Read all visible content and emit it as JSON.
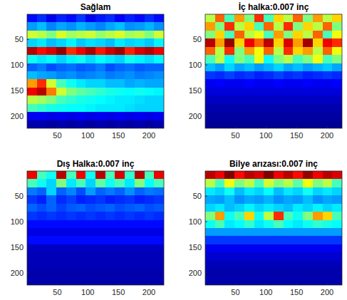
{
  "chart_data": [
    {
      "type": "heatmap",
      "title": "Sağlam",
      "xlim": [
        0.5,
        224.5
      ],
      "ylim": [
        0.5,
        224.5
      ],
      "xticks": [
        50,
        100,
        150,
        200
      ],
      "yticks": [
        50,
        100,
        150,
        200
      ],
      "zlim": [
        0.1,
        1
      ],
      "cells": [
        [
          0.22,
          0.25,
          0.2,
          0.24,
          0.22,
          0.26,
          0.2,
          0.23,
          0.25,
          0.21,
          0.24,
          0.22,
          0.25,
          0.22
        ],
        [
          0.35,
          0.38,
          0.33,
          0.36,
          0.34,
          0.37,
          0.35,
          0.33,
          0.36,
          0.38,
          0.34,
          0.35,
          0.37,
          0.34
        ],
        [
          0.62,
          0.6,
          0.55,
          0.63,
          0.58,
          0.6,
          0.62,
          0.57,
          0.6,
          0.63,
          0.58,
          0.6,
          0.55,
          0.62
        ],
        [
          0.4,
          0.42,
          0.38,
          0.4,
          0.43,
          0.39,
          0.41,
          0.4,
          0.38,
          0.42,
          0.4,
          0.41,
          0.39,
          0.43
        ],
        [
          0.95,
          0.88,
          0.92,
          0.98,
          0.85,
          0.9,
          0.96,
          0.87,
          0.93,
          0.97,
          0.86,
          0.92,
          0.95,
          0.9
        ],
        [
          0.45,
          0.42,
          0.44,
          0.4,
          0.43,
          0.45,
          0.41,
          0.44,
          0.42,
          0.4,
          0.45,
          0.43,
          0.41,
          0.44
        ],
        [
          0.3,
          0.32,
          0.28,
          0.3,
          0.31,
          0.29,
          0.3,
          0.32,
          0.28,
          0.3,
          0.31,
          0.29,
          0.3,
          0.3
        ],
        [
          0.38,
          0.36,
          0.35,
          0.33,
          0.34,
          0.32,
          0.33,
          0.34,
          0.32,
          0.33,
          0.34,
          0.32,
          0.33,
          0.34
        ],
        [
          0.75,
          0.85,
          0.62,
          0.5,
          0.45,
          0.42,
          0.4,
          0.4,
          0.38,
          0.38,
          0.36,
          0.37,
          0.36,
          0.36
        ],
        [
          0.9,
          0.95,
          0.78,
          0.62,
          0.55,
          0.52,
          0.5,
          0.48,
          0.46,
          0.45,
          0.44,
          0.45,
          0.44,
          0.43
        ],
        [
          0.6,
          0.58,
          0.55,
          0.5,
          0.48,
          0.46,
          0.45,
          0.44,
          0.43,
          0.42,
          0.42,
          0.41,
          0.4,
          0.4
        ],
        [
          0.5,
          0.48,
          0.46,
          0.45,
          0.44,
          0.44,
          0.43,
          0.42,
          0.42,
          0.42,
          0.41,
          0.4,
          0.4,
          0.4
        ],
        [
          0.2,
          0.2,
          0.19,
          0.2,
          0.19,
          0.2,
          0.19,
          0.2,
          0.19,
          0.2,
          0.19,
          0.2,
          0.19,
          0.2
        ],
        [
          0.14,
          0.14,
          0.13,
          0.14,
          0.13,
          0.14,
          0.13,
          0.14,
          0.13,
          0.14,
          0.13,
          0.14,
          0.13,
          0.14
        ]
      ]
    },
    {
      "type": "heatmap",
      "title": "İç halka:0.007 inç",
      "xlim": [
        0.5,
        224.5
      ],
      "ylim": [
        0.5,
        224.5
      ],
      "xticks": [
        50,
        100,
        150,
        200
      ],
      "yticks": [
        50,
        100,
        150,
        200
      ],
      "zlim": [
        0.1,
        1
      ],
      "cells": [
        [
          0.6,
          0.8,
          0.5,
          0.75,
          0.55,
          0.85,
          0.5,
          0.7,
          0.6,
          0.8,
          0.55,
          0.75,
          0.6,
          0.7
        ],
        [
          0.75,
          0.55,
          0.85,
          0.6,
          0.7,
          0.5,
          0.8,
          0.6,
          0.85,
          0.55,
          0.7,
          0.6,
          0.8,
          0.55
        ],
        [
          0.55,
          0.7,
          0.5,
          0.8,
          0.6,
          0.65,
          0.5,
          0.75,
          0.55,
          0.7,
          0.6,
          0.8,
          0.5,
          0.65
        ],
        [
          0.95,
          0.75,
          0.98,
          0.7,
          0.9,
          0.8,
          0.95,
          0.7,
          0.92,
          0.75,
          0.97,
          0.7,
          0.9,
          0.85
        ],
        [
          0.8,
          0.6,
          0.85,
          0.55,
          0.75,
          0.65,
          0.8,
          0.6,
          0.85,
          0.7,
          0.75,
          0.6,
          0.8,
          0.65
        ],
        [
          0.5,
          0.6,
          0.45,
          0.55,
          0.5,
          0.65,
          0.45,
          0.55,
          0.6,
          0.5,
          0.55,
          0.65,
          0.5,
          0.55
        ],
        [
          0.38,
          0.35,
          0.4,
          0.36,
          0.38,
          0.35,
          0.37,
          0.4,
          0.36,
          0.38,
          0.35,
          0.37,
          0.39,
          0.36
        ],
        [
          0.26,
          0.25,
          0.27,
          0.25,
          0.26,
          0.24,
          0.25,
          0.27,
          0.25,
          0.26,
          0.24,
          0.25,
          0.26,
          0.25
        ],
        [
          0.2,
          0.21,
          0.2,
          0.2,
          0.21,
          0.2,
          0.2,
          0.21,
          0.2,
          0.2,
          0.21,
          0.2,
          0.2,
          0.21
        ],
        [
          0.18,
          0.18,
          0.18,
          0.18,
          0.18,
          0.18,
          0.18,
          0.18,
          0.18,
          0.18,
          0.18,
          0.18,
          0.18,
          0.18
        ],
        [
          0.16,
          0.16,
          0.16,
          0.16,
          0.16,
          0.16,
          0.16,
          0.16,
          0.16,
          0.16,
          0.16,
          0.16,
          0.16,
          0.16
        ],
        [
          0.14,
          0.14,
          0.14,
          0.14,
          0.14,
          0.14,
          0.14,
          0.14,
          0.14,
          0.14,
          0.14,
          0.14,
          0.14,
          0.14
        ],
        [
          0.13,
          0.13,
          0.13,
          0.13,
          0.13,
          0.13,
          0.13,
          0.13,
          0.13,
          0.13,
          0.13,
          0.13,
          0.13,
          0.13
        ],
        [
          0.12,
          0.12,
          0.12,
          0.12,
          0.12,
          0.12,
          0.12,
          0.12,
          0.12,
          0.12,
          0.12,
          0.12,
          0.12,
          0.12
        ]
      ]
    },
    {
      "type": "heatmap",
      "title": "Dış Halka:0.007 inç",
      "xlim": [
        0.5,
        224.5
      ],
      "ylim": [
        0.5,
        224.5
      ],
      "xticks": [
        50,
        100,
        150,
        200
      ],
      "yticks": [
        50,
        100,
        150,
        200
      ],
      "zlim": [
        0.1,
        1
      ],
      "cells": [
        [
          0.9,
          0.5,
          0.45,
          0.95,
          0.5,
          0.9,
          0.45,
          0.95,
          0.5,
          0.92,
          0.48,
          0.95,
          0.5,
          0.9
        ],
        [
          0.5,
          0.45,
          0.4,
          0.55,
          0.42,
          0.5,
          0.4,
          0.52,
          0.45,
          0.5,
          0.42,
          0.55,
          0.44,
          0.5
        ],
        [
          0.32,
          0.3,
          0.4,
          0.3,
          0.33,
          0.28,
          0.35,
          0.3,
          0.32,
          0.3,
          0.34,
          0.3,
          0.32,
          0.31
        ],
        [
          0.26,
          0.24,
          0.3,
          0.25,
          0.27,
          0.24,
          0.25,
          0.26,
          0.24,
          0.25,
          0.26,
          0.24,
          0.25,
          0.26
        ],
        [
          0.3,
          0.28,
          0.3,
          0.27,
          0.29,
          0.3,
          0.28,
          0.29,
          0.3,
          0.28,
          0.29,
          0.3,
          0.28,
          0.29
        ],
        [
          0.26,
          0.25,
          0.26,
          0.25,
          0.26,
          0.25,
          0.26,
          0.25,
          0.26,
          0.25,
          0.26,
          0.25,
          0.26,
          0.25
        ],
        [
          0.22,
          0.22,
          0.22,
          0.22,
          0.22,
          0.22,
          0.22,
          0.22,
          0.22,
          0.22,
          0.22,
          0.22,
          0.22,
          0.22
        ],
        [
          0.19,
          0.19,
          0.19,
          0.19,
          0.19,
          0.19,
          0.19,
          0.19,
          0.19,
          0.19,
          0.19,
          0.19,
          0.19,
          0.19
        ],
        [
          0.22,
          0.22,
          0.22,
          0.22,
          0.22,
          0.22,
          0.22,
          0.22,
          0.22,
          0.22,
          0.22,
          0.22,
          0.22,
          0.22
        ],
        [
          0.16,
          0.16,
          0.16,
          0.16,
          0.16,
          0.16,
          0.16,
          0.16,
          0.16,
          0.16,
          0.16,
          0.16,
          0.16,
          0.16
        ],
        [
          0.15,
          0.15,
          0.15,
          0.15,
          0.15,
          0.15,
          0.15,
          0.15,
          0.15,
          0.15,
          0.15,
          0.15,
          0.15,
          0.15
        ],
        [
          0.15,
          0.15,
          0.15,
          0.15,
          0.15,
          0.15,
          0.15,
          0.15,
          0.15,
          0.15,
          0.15,
          0.15,
          0.15,
          0.15
        ],
        [
          0.14,
          0.14,
          0.14,
          0.14,
          0.14,
          0.14,
          0.14,
          0.14,
          0.14,
          0.14,
          0.14,
          0.14,
          0.14,
          0.14
        ],
        [
          0.14,
          0.14,
          0.14,
          0.14,
          0.14,
          0.14,
          0.14,
          0.14,
          0.14,
          0.14,
          0.14,
          0.14,
          0.14,
          0.14
        ]
      ]
    },
    {
      "type": "heatmap",
      "title": "Bilye arızası:0.007 inç",
      "xlim": [
        0.5,
        224.5
      ],
      "ylim": [
        0.5,
        224.5
      ],
      "xticks": [
        50,
        100,
        150,
        200
      ],
      "yticks": [
        50,
        100,
        150,
        200
      ],
      "zlim": [
        0.1,
        1
      ],
      "cells": [
        [
          0.95,
          0.9,
          1.0,
          0.88,
          0.95,
          0.92,
          1.0,
          0.9,
          0.95,
          0.88,
          0.98,
          0.9,
          0.95,
          0.92
        ],
        [
          0.6,
          0.5,
          0.65,
          0.55,
          0.6,
          0.5,
          0.62,
          0.55,
          0.6,
          0.52,
          0.65,
          0.55,
          0.6,
          0.5
        ],
        [
          0.42,
          0.4,
          0.45,
          0.38,
          0.42,
          0.4,
          0.44,
          0.38,
          0.42,
          0.4,
          0.45,
          0.4,
          0.42,
          0.4
        ],
        [
          0.36,
          0.35,
          0.38,
          0.34,
          0.36,
          0.35,
          0.37,
          0.34,
          0.36,
          0.35,
          0.38,
          0.34,
          0.36,
          0.35
        ],
        [
          0.4,
          0.42,
          0.38,
          0.4,
          0.43,
          0.4,
          0.42,
          0.4,
          0.38,
          0.42,
          0.4,
          0.43,
          0.4,
          0.42
        ],
        [
          0.55,
          0.75,
          0.45,
          0.5,
          0.7,
          0.45,
          0.6,
          0.85,
          0.5,
          0.45,
          0.55,
          0.75,
          0.7,
          0.5
        ],
        [
          0.45,
          0.5,
          0.42,
          0.44,
          0.48,
          0.42,
          0.45,
          0.5,
          0.44,
          0.42,
          0.45,
          0.48,
          0.46,
          0.44
        ],
        [
          0.35,
          0.35,
          0.35,
          0.35,
          0.35,
          0.35,
          0.35,
          0.35,
          0.35,
          0.35,
          0.35,
          0.35,
          0.35,
          0.35
        ],
        [
          0.26,
          0.26,
          0.26,
          0.26,
          0.26,
          0.26,
          0.26,
          0.26,
          0.26,
          0.26,
          0.26,
          0.26,
          0.26,
          0.26
        ],
        [
          0.2,
          0.2,
          0.2,
          0.2,
          0.2,
          0.2,
          0.2,
          0.2,
          0.2,
          0.2,
          0.2,
          0.2,
          0.2,
          0.2
        ],
        [
          0.17,
          0.17,
          0.17,
          0.17,
          0.17,
          0.17,
          0.17,
          0.17,
          0.17,
          0.17,
          0.17,
          0.17,
          0.17,
          0.17
        ],
        [
          0.15,
          0.15,
          0.15,
          0.15,
          0.15,
          0.15,
          0.15,
          0.15,
          0.15,
          0.15,
          0.15,
          0.15,
          0.15,
          0.15
        ],
        [
          0.14,
          0.14,
          0.14,
          0.14,
          0.14,
          0.14,
          0.14,
          0.14,
          0.14,
          0.14,
          0.14,
          0.14,
          0.14,
          0.14
        ],
        [
          0.14,
          0.14,
          0.14,
          0.14,
          0.14,
          0.14,
          0.14,
          0.14,
          0.14,
          0.14,
          0.14,
          0.14,
          0.14,
          0.14
        ]
      ]
    }
  ]
}
